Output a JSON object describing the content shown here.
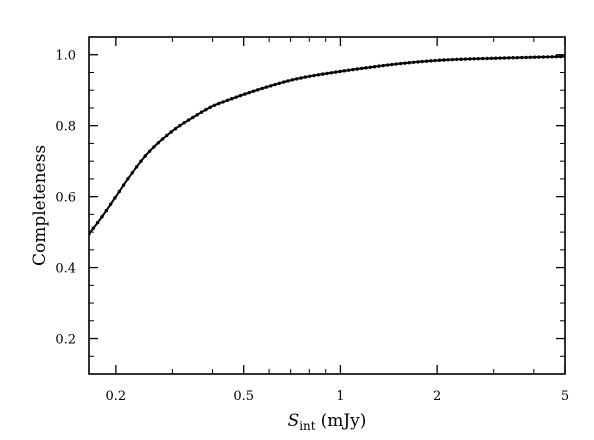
{
  "chart_data": {
    "type": "line",
    "title": "",
    "xlabel": "S_int (mJy)",
    "xlabel_parts": {
      "symbol": "S",
      "subscript": "int",
      "unit": "(mJy)"
    },
    "ylabel": "Completeness",
    "xscale": "log",
    "xlim": [
      0.165,
      5.0
    ],
    "ylim": [
      0.1,
      1.05
    ],
    "x_ticks": [
      {
        "value": 0.2,
        "label": "0.2"
      },
      {
        "value": 0.5,
        "label": "0.5"
      },
      {
        "value": 1,
        "label": "1"
      },
      {
        "value": 2,
        "label": "2"
      },
      {
        "value": 5,
        "label": "5"
      }
    ],
    "y_ticks": [
      {
        "value": 0.2,
        "label": "0.2"
      },
      {
        "value": 0.4,
        "label": "0.4"
      },
      {
        "value": 0.6,
        "label": "0.6"
      },
      {
        "value": 0.8,
        "label": "0.8"
      },
      {
        "value": 1.0,
        "label": "1.0"
      }
    ],
    "grid": false,
    "legend": "none",
    "series": [
      {
        "color": "#000000",
        "marker": "dot",
        "x": [
          0.165,
          0.18,
          0.2,
          0.22,
          0.25,
          0.3,
          0.35,
          0.4,
          0.45,
          0.5,
          0.6,
          0.7,
          0.8,
          1.0,
          1.2,
          1.5,
          2.0,
          2.5,
          3.0,
          4.0,
          5.0
        ],
        "y": [
          0.495,
          0.54,
          0.6,
          0.655,
          0.72,
          0.785,
          0.825,
          0.855,
          0.873,
          0.888,
          0.911,
          0.928,
          0.939,
          0.953,
          0.963,
          0.974,
          0.984,
          0.988,
          0.99,
          0.993,
          0.995
        ]
      }
    ]
  }
}
